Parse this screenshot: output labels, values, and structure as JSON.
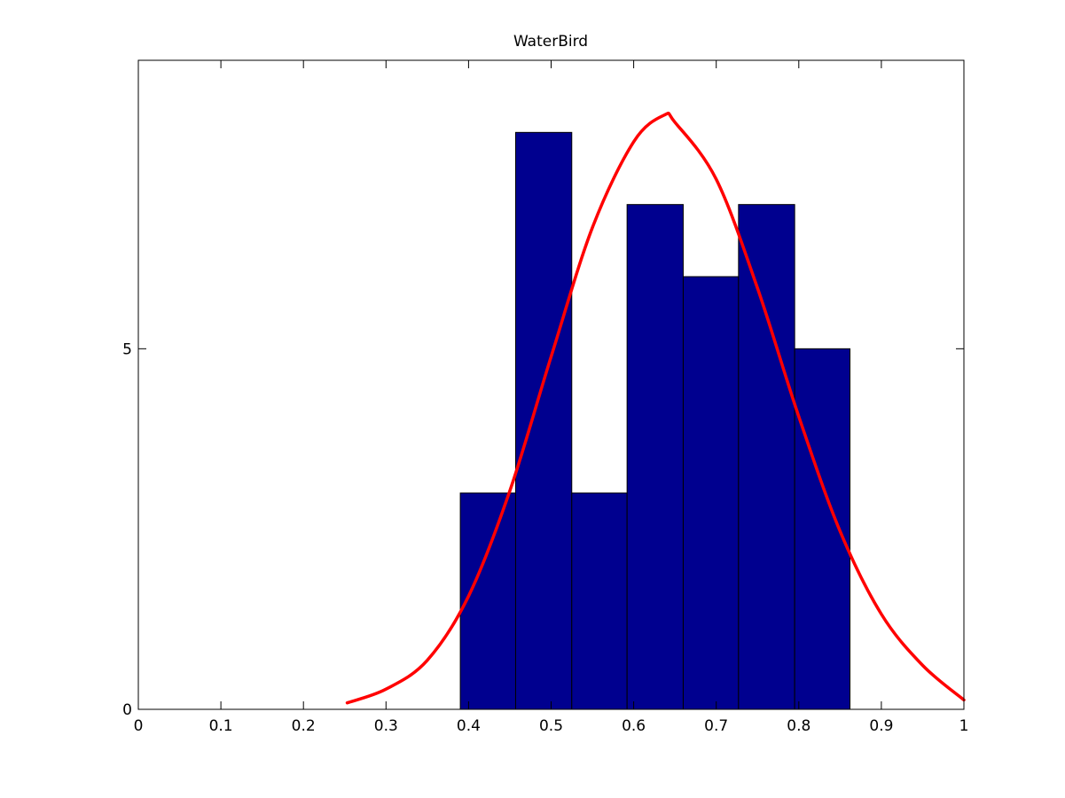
{
  "chart_data": {
    "type": "bar",
    "title": "WaterBird",
    "xlabel": "",
    "ylabel": "",
    "xlim": [
      0,
      1
    ],
    "ylim": [
      0,
      9
    ],
    "x_ticks": [
      0,
      0.1,
      0.2,
      0.3,
      0.4,
      0.5,
      0.6,
      0.7,
      0.8,
      0.9,
      1
    ],
    "x_tick_labels": [
      "0",
      "0.1",
      "0.2",
      "0.3",
      "0.4",
      "0.5",
      "0.6",
      "0.7",
      "0.8",
      "0.9",
      "1"
    ],
    "y_ticks": [
      0,
      5
    ],
    "y_tick_labels": [
      "0",
      "5"
    ],
    "grid": false,
    "legend": "none",
    "series": [
      {
        "type": "histogram",
        "bins": [
          {
            "x0": 0.39,
            "x1": 0.457,
            "count": 3
          },
          {
            "x0": 0.457,
            "x1": 0.525,
            "count": 8
          },
          {
            "x0": 0.525,
            "x1": 0.592,
            "count": 3
          },
          {
            "x0": 0.592,
            "x1": 0.66,
            "count": 7
          },
          {
            "x0": 0.66,
            "x1": 0.727,
            "count": 6
          },
          {
            "x0": 0.727,
            "x1": 0.795,
            "count": 7
          },
          {
            "x0": 0.795,
            "x1": 0.862,
            "count": 5
          }
        ],
        "color": "#00008f",
        "edge_color": "#000000"
      },
      {
        "type": "line",
        "curve": "normal-fit",
        "x": [
          0.253,
          0.3,
          0.35,
          0.4,
          0.45,
          0.5,
          0.55,
          0.6,
          0.637,
          0.65,
          0.7,
          0.75,
          0.8,
          0.85,
          0.9,
          0.95,
          1.0
        ],
        "y": [
          0.09,
          0.28,
          0.68,
          1.57,
          3.03,
          4.89,
          6.68,
          7.87,
          8.24,
          8.14,
          7.35,
          5.84,
          4.06,
          2.47,
          1.32,
          0.61,
          0.13
        ],
        "color": "#ff0000"
      }
    ]
  }
}
